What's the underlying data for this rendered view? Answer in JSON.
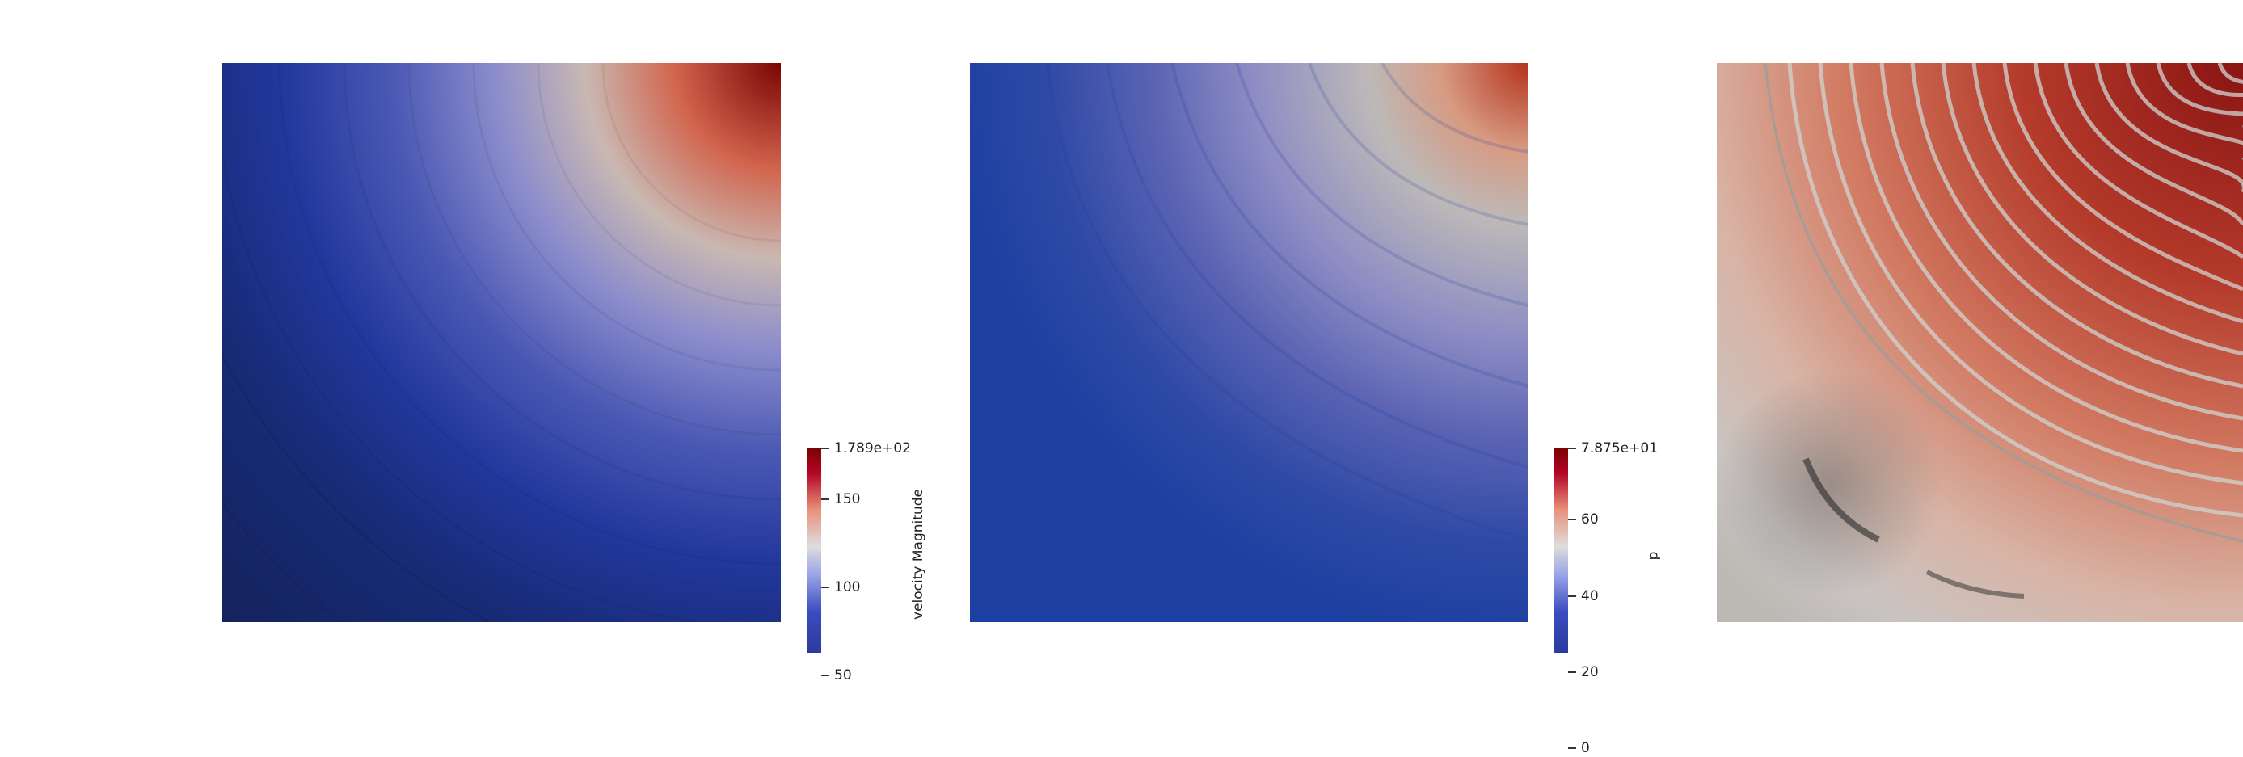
{
  "views": [
    {
      "id": "velocity-view",
      "colorbar": {
        "title": "velocity Magnitude",
        "range": [
          0,
          178.9
        ],
        "max_label": "1.789e+02",
        "ticks": [
          {
            "value": 150,
            "label": "150"
          },
          {
            "value": 100,
            "label": "100"
          },
          {
            "value": 50,
            "label": "50"
          }
        ]
      }
    },
    {
      "id": "pressure-view",
      "colorbar": {
        "title": "p",
        "range": [
          -4,
          78.75
        ],
        "max_label": "7.875e+01",
        "ticks": [
          {
            "value": 60,
            "label": "60"
          },
          {
            "value": 40,
            "label": "40"
          },
          {
            "value": 20,
            "label": "20"
          },
          {
            "value": 0,
            "label": "0"
          }
        ]
      }
    },
    {
      "id": "third-view"
    }
  ],
  "colors": {
    "colormap": "Cool to Warm",
    "low": "#3b4cc0",
    "mid": "#dddddd",
    "high": "#b40426",
    "extreme": "#7a0403",
    "background": "#ffffff"
  }
}
